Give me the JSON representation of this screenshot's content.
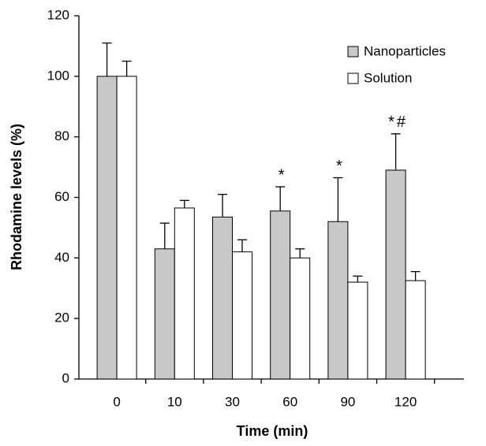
{
  "chart_data": {
    "type": "bar",
    "x_label": "Time (min)",
    "y_label": "Rhodamine levels (%)",
    "categories": [
      "0",
      "10",
      "30",
      "60",
      "90",
      "120"
    ],
    "series": [
      {
        "name": "Nanoparticles",
        "color": "#c8c8c8",
        "values": [
          100,
          43,
          53.5,
          55.5,
          52,
          69
        ],
        "errors": [
          11,
          8.5,
          7.5,
          8,
          14.5,
          12
        ],
        "annotations": [
          null,
          null,
          null,
          "*",
          "*",
          "*#"
        ]
      },
      {
        "name": "Solution",
        "color": "#ffffff",
        "values": [
          100,
          56.5,
          42,
          40,
          32,
          32.5
        ],
        "errors": [
          5,
          2.5,
          4,
          3,
          2,
          3
        ]
      }
    ],
    "ylim": [
      0,
      120
    ],
    "yticks": [
      0,
      20,
      40,
      60,
      80,
      100,
      120
    ],
    "legend": "upper right"
  }
}
